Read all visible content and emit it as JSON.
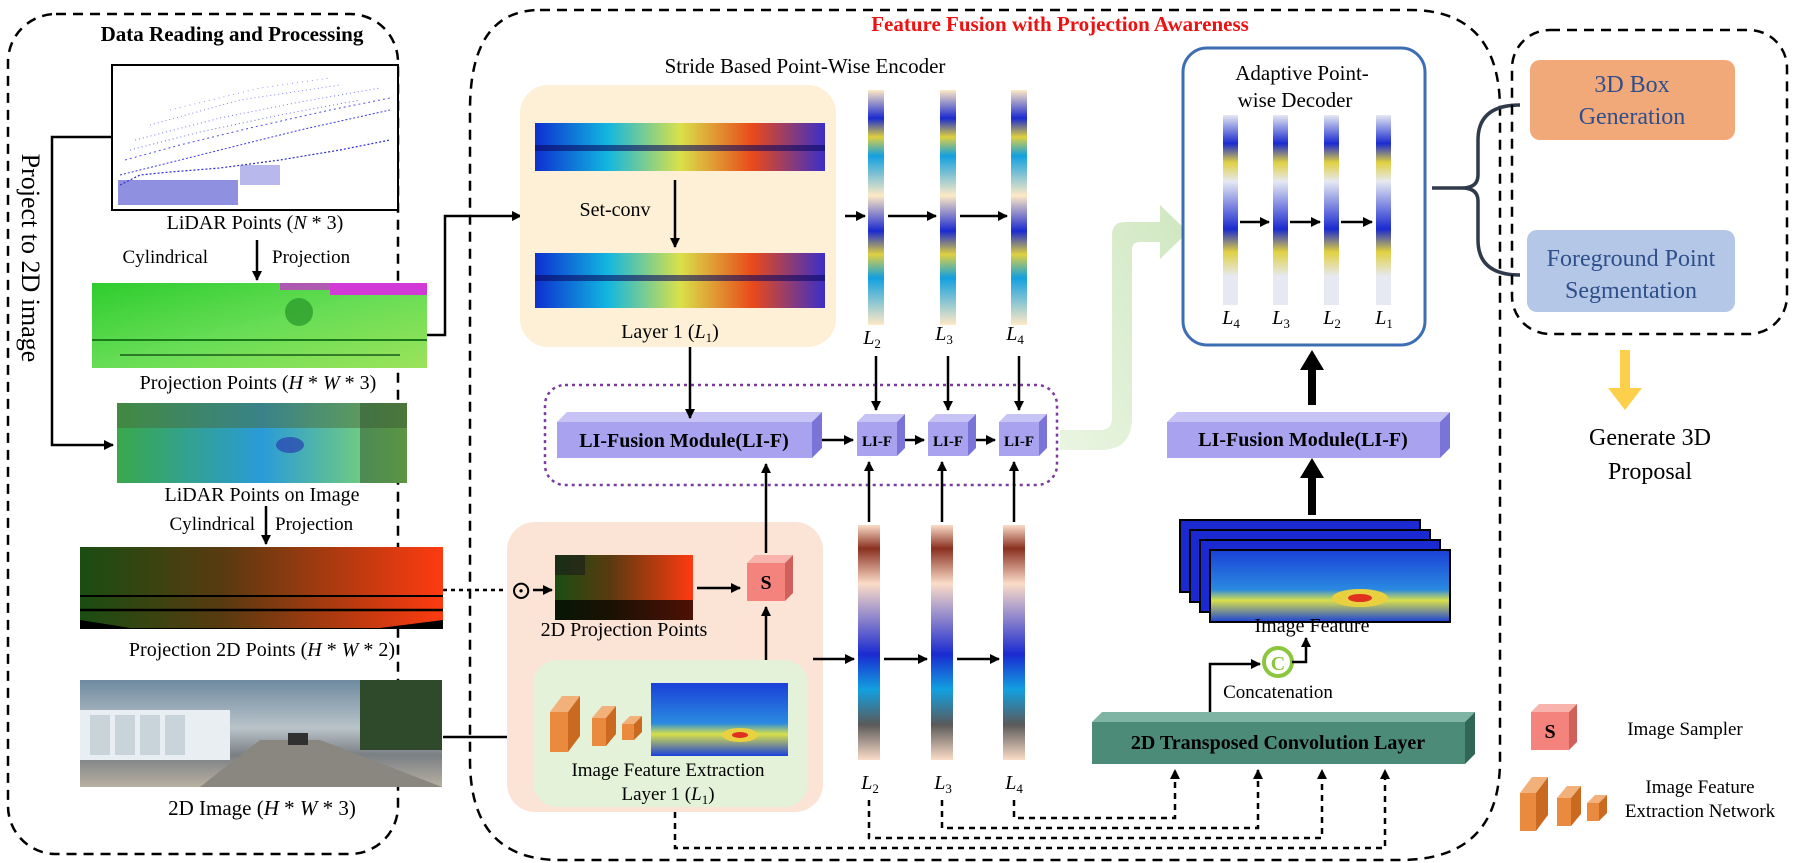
{
  "left_panel": {
    "title": "Data Reading and Processing",
    "vertical_label": "Project to 2D image",
    "lidar_points": {
      "label_pre": "LiDAR Points (",
      "var": "N",
      "label_post": " * 3)"
    },
    "cyl_proj_1": {
      "left": "Cylindrical",
      "right": "Projection"
    },
    "projection_points": {
      "label_pre": "Projection Points (",
      "var1": "H",
      "mid": " * ",
      "var2": "W",
      "label_post": " * 3)"
    },
    "lidar_on_image": "LiDAR Points on Image",
    "cyl_proj_2": {
      "left": "Cylindrical",
      "right": "Projection"
    },
    "projection_2d": {
      "label_pre": "Projection 2D Points (",
      "var1": "H",
      "mid": " * ",
      "var2": "W",
      "label_post": " * 2)"
    },
    "image_2d": {
      "label_pre": "2D Image (",
      "var1": "H",
      "mid": " * ",
      "var2": "W",
      "label_post": " * 3)"
    }
  },
  "center_panel": {
    "title": "Feature Fusion with Projection Awareness",
    "encoder_title": "Stride Based Point-Wise Encoder",
    "set_conv": "Set-conv",
    "layer1": {
      "pre": "Layer 1 (",
      "var": "L",
      "sub": "1",
      "post": ")"
    },
    "level_labels_top": [
      {
        "var": "L",
        "sub": "2"
      },
      {
        "var": "L",
        "sub": "3"
      },
      {
        "var": "L",
        "sub": "4"
      }
    ],
    "li_fusion_main": "LI-Fusion Module(LI-F)",
    "li_f_small": [
      "LI-F",
      "LI-F",
      "LI-F"
    ],
    "sampler_letter": "S",
    "dot_symbol": "⊙",
    "proj2d_points": "2D Projection Points",
    "img_feat_extraction": "Image Feature Extraction",
    "layer1_bottom": {
      "pre": "Layer 1 (",
      "var": "L",
      "sub": "1",
      "post": ")"
    },
    "level_labels_bottom": [
      {
        "var": "L",
        "sub": "2"
      },
      {
        "var": "L",
        "sub": "3"
      },
      {
        "var": "L",
        "sub": "4"
      }
    ],
    "decoder_title_1": "Adaptive Point-",
    "decoder_title_2": "wise Decoder",
    "decoder_levels": [
      {
        "var": "L",
        "sub": "4"
      },
      {
        "var": "L",
        "sub": "3"
      },
      {
        "var": "L",
        "sub": "2"
      },
      {
        "var": "L",
        "sub": "1"
      }
    ],
    "li_fusion_right": "LI-Fusion Module(LI-F)",
    "image_feature": "Image Feature",
    "concat_symbol": "C",
    "concatenation": "Concatenation",
    "transposed_conv": "2D Transposed Convolution Layer"
  },
  "right_panel": {
    "box_gen": [
      "3D Box",
      "Generation"
    ],
    "fg_seg": [
      "Foreground Point",
      "Segmentation"
    ],
    "generate": [
      "Generate 3D",
      "Proposal"
    ]
  },
  "legend": {
    "sampler_letter": "S",
    "sampler": "Image Sampler",
    "extraction": [
      "Image Feature",
      "Extraction Network"
    ]
  },
  "colors": {
    "title_red": "#ee1111",
    "lifusion_fill": "#a9a3ef",
    "encoder_bg": "#fdf0d6",
    "image_bg": "#fbe3d6",
    "feat_bg": "#e3f2d9",
    "decoder_border": "#3d6eb3",
    "box_gen_fill": "#f2a97a",
    "fg_seg_fill": "#b4c7e7",
    "sampler_fill": "#f4837d",
    "transposed_fill": "#4b8b78",
    "orange_block": "#e98a3e",
    "light_green_arrow": "#d6ecc8",
    "yellow_arrow": "#fcd04a"
  }
}
